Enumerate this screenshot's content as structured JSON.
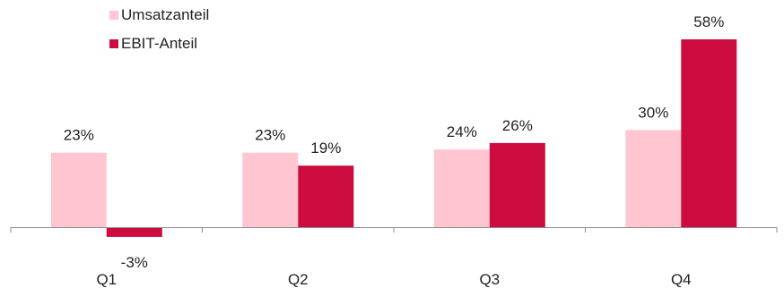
{
  "chart_data": {
    "type": "bar",
    "title": "",
    "xlabel": "",
    "ylabel": "",
    "categories": [
      "Q1",
      "Q2",
      "Q3",
      "Q4"
    ],
    "series": [
      {
        "name": "Umsatzanteil",
        "values": [
          23,
          23,
          24,
          30
        ],
        "labels": [
          "23%",
          "23%",
          "24%",
          "30%"
        ],
        "color": "#FFC6D2"
      },
      {
        "name": "EBIT-Anteil",
        "values": [
          -3,
          19,
          26,
          58
        ],
        "labels": [
          "-3%",
          "19%",
          "26%",
          "58%"
        ],
        "color": "#CC0C3E"
      }
    ],
    "ylim": [
      -3,
      58
    ],
    "grid": false,
    "legend": "top-left"
  }
}
